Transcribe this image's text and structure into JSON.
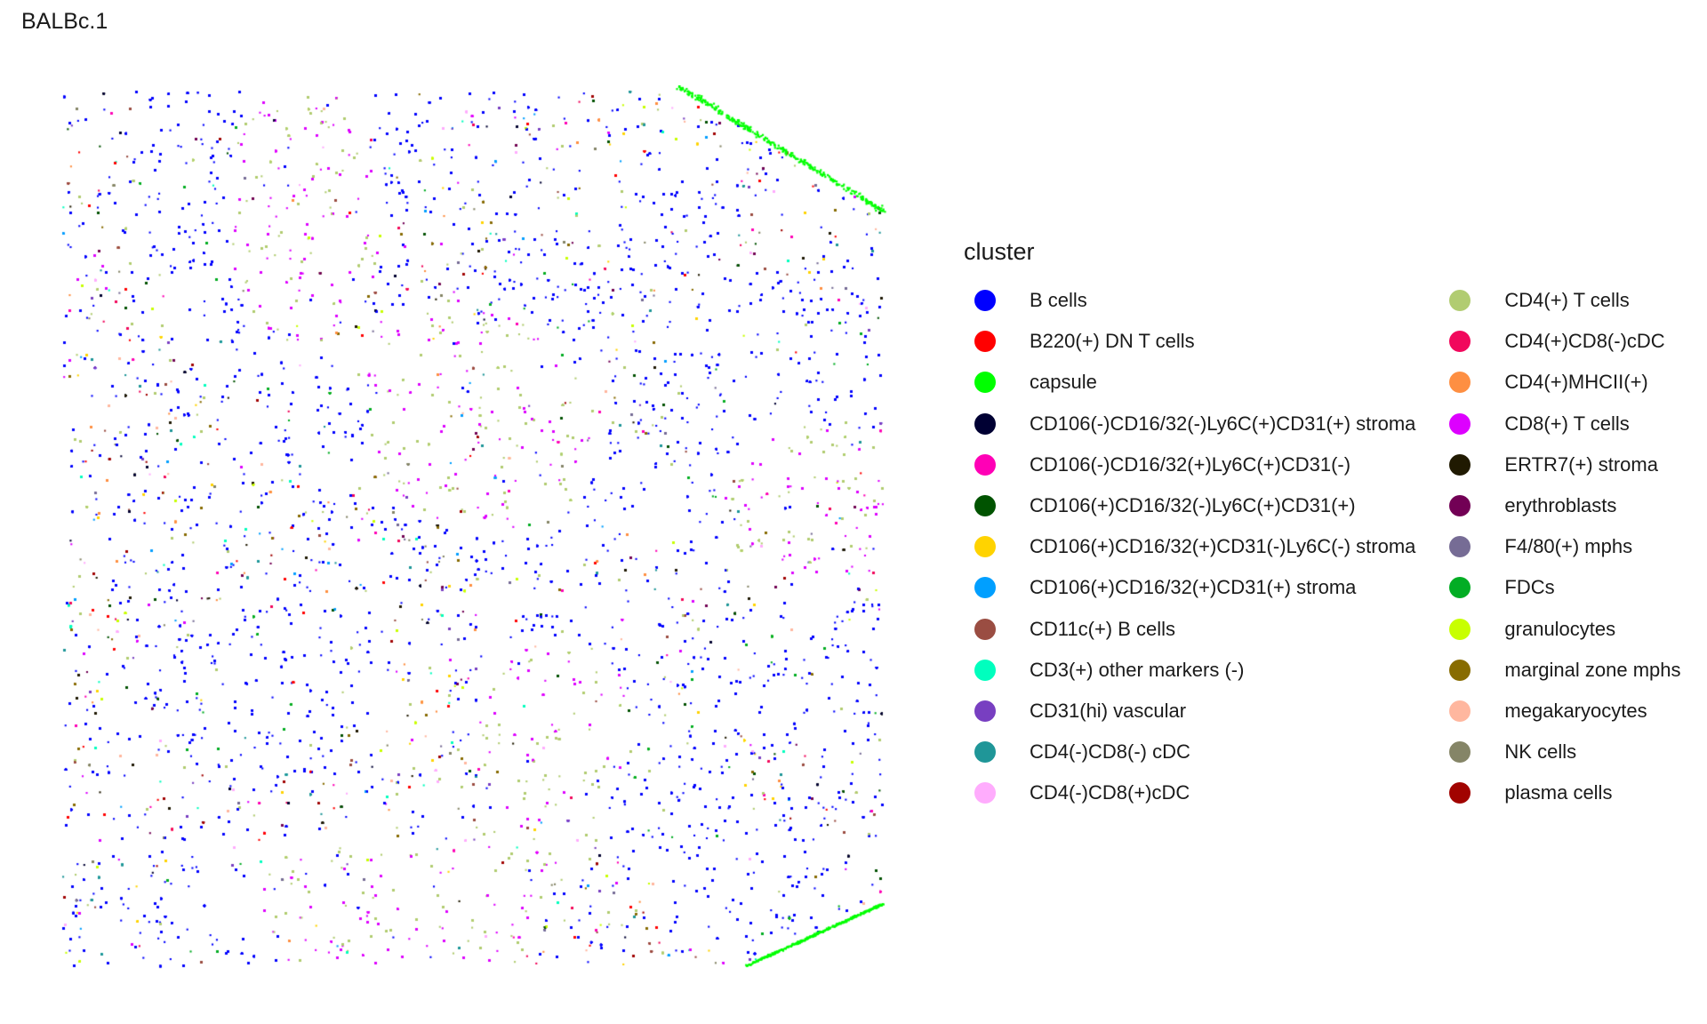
{
  "chart_data": {
    "type": "scatter",
    "title": "BALBc.1",
    "legend": {
      "title": "cluster",
      "placement": "right",
      "entries": [
        {
          "name": "B cells",
          "color": "#0000FF"
        },
        {
          "name": "B220(+) DN T cells",
          "color": "#FF0000"
        },
        {
          "name": "capsule",
          "color": "#00FF00"
        },
        {
          "name": "CD106(-)CD16/32(-)Ly6C(+)CD31(+) stroma",
          "color": "#000033"
        },
        {
          "name": "CD106(-)CD16/32(+)Ly6C(+)CD31(-)",
          "color": "#FF00B6"
        },
        {
          "name": "CD106(+)CD16/32(-)Ly6C(+)CD31(+)",
          "color": "#005300"
        },
        {
          "name": "CD106(+)CD16/32(+)CD31(-)Ly6C(-) stroma",
          "color": "#FFD300"
        },
        {
          "name": "CD106(+)CD16/32(+)CD31(+) stroma",
          "color": "#009FFF"
        },
        {
          "name": "CD11c(+) B cells",
          "color": "#9A4D42"
        },
        {
          "name": "CD3(+) other markers (-)",
          "color": "#00FFBE"
        },
        {
          "name": "CD31(hi) vascular",
          "color": "#783FC1"
        },
        {
          "name": "CD4(-)CD8(-) cDC",
          "color": "#1F9698"
        },
        {
          "name": "CD4(-)CD8(+)cDC",
          "color": "#FFACFD"
        },
        {
          "name": "CD4(+) T cells",
          "color": "#B1CC71"
        },
        {
          "name": "CD4(+)CD8(-)cDC",
          "color": "#F1085C"
        },
        {
          "name": "CD4(+)MHCII(+)",
          "color": "#FE8F42"
        },
        {
          "name": "CD8(+) T cells",
          "color": "#DD00FF"
        },
        {
          "name": "ERTR7(+) stroma",
          "color": "#201A01"
        },
        {
          "name": "erythroblasts",
          "color": "#720055"
        },
        {
          "name": "F4/80(+) mphs",
          "color": "#766C95"
        },
        {
          "name": "FDCs",
          "color": "#02AD24"
        },
        {
          "name": "granulocytes",
          "color": "#C8FF00"
        },
        {
          "name": "marginal zone mphs",
          "color": "#886C00"
        },
        {
          "name": "megakaryocytes",
          "color": "#FFB79F"
        },
        {
          "name": "NK cells",
          "color": "#858567"
        },
        {
          "name": "plasma cells",
          "color": "#A10300"
        }
      ]
    },
    "xlabel": "",
    "ylabel": "",
    "axes_visible": false,
    "grid": false,
    "background": "#FFFFFF"
  }
}
